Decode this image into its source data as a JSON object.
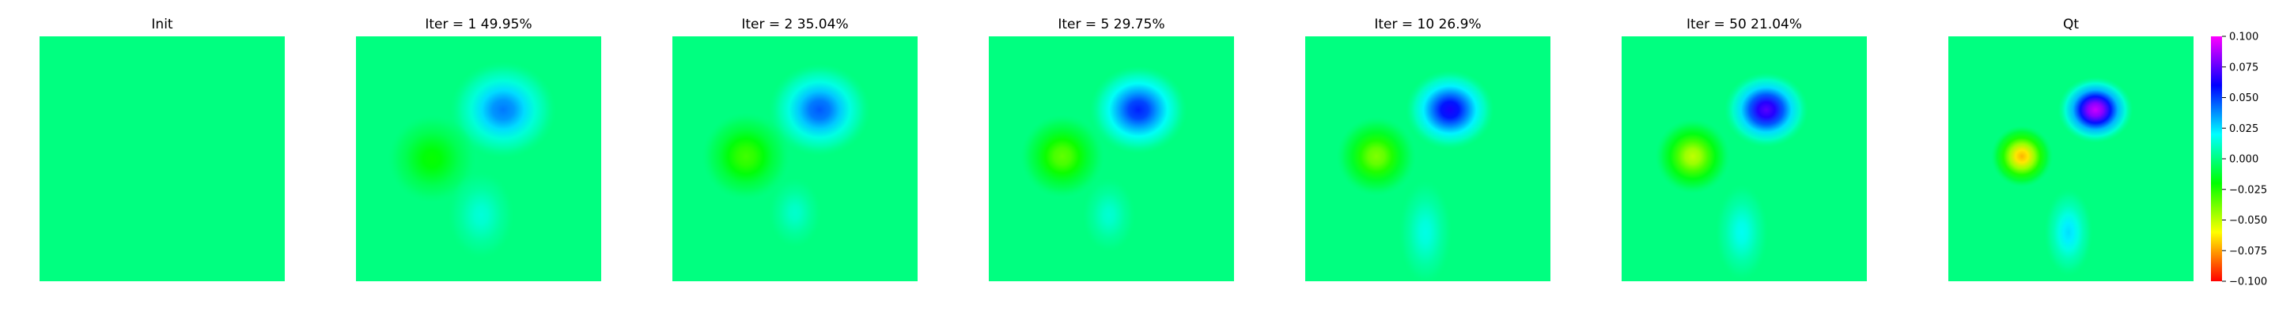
{
  "chart_data": {
    "type": "heatmap",
    "colormap": "gist_rainbow (red -> yellow -> green -> cyan -> blue -> magenta)",
    "colorbar": {
      "min": -0.1,
      "max": 0.1,
      "ticks": [
        "0.100",
        "0.075",
        "0.050",
        "0.025",
        "0.000",
        "−0.025",
        "−0.050",
        "−0.075",
        "−0.100"
      ],
      "tick_values": [
        0.1,
        0.075,
        0.05,
        0.025,
        0.0,
        -0.025,
        -0.05,
        -0.075,
        -0.1
      ]
    },
    "panels": [
      {
        "title": "Init",
        "iteration": null,
        "error_percent": null,
        "features": []
      },
      {
        "title": "Iter = 1    49.95%",
        "iteration": 1,
        "error_percent": 49.95,
        "features": [
          {
            "label": "upper-right anomaly",
            "cx": 0.6,
            "cy": 0.3,
            "sx": 0.12,
            "sy": 0.11,
            "value": 0.041
          },
          {
            "label": "left anomaly",
            "cx": 0.31,
            "cy": 0.5,
            "sx": 0.1,
            "sy": 0.1,
            "value": -0.021
          },
          {
            "label": "lower anomaly",
            "cx": 0.51,
            "cy": 0.73,
            "sx": 0.075,
            "sy": 0.1,
            "value": 0.014
          }
        ]
      },
      {
        "title": "Iter = 2    35.04%",
        "iteration": 2,
        "error_percent": 35.04,
        "features": [
          {
            "label": "upper-right anomaly",
            "cx": 0.6,
            "cy": 0.3,
            "sx": 0.115,
            "sy": 0.105,
            "value": 0.046
          },
          {
            "label": "left anomaly",
            "cx": 0.3,
            "cy": 0.49,
            "sx": 0.1,
            "sy": 0.1,
            "value": -0.03
          },
          {
            "label": "lower anomaly",
            "cx": 0.5,
            "cy": 0.72,
            "sx": 0.06,
            "sy": 0.08,
            "value": 0.012
          }
        ]
      },
      {
        "title": "Iter = 5    29.75%",
        "iteration": 5,
        "error_percent": 29.75,
        "features": [
          {
            "label": "upper-right anomaly",
            "cx": 0.61,
            "cy": 0.3,
            "sx": 0.11,
            "sy": 0.1,
            "value": 0.055
          },
          {
            "label": "left anomaly",
            "cx": 0.3,
            "cy": 0.49,
            "sx": 0.095,
            "sy": 0.095,
            "value": -0.035
          },
          {
            "label": "lower anomaly",
            "cx": 0.49,
            "cy": 0.73,
            "sx": 0.06,
            "sy": 0.085,
            "value": 0.013
          }
        ]
      },
      {
        "title": "Iter = 10    26.9%",
        "iteration": 10,
        "error_percent": 26.9,
        "features": [
          {
            "label": "upper-right anomaly",
            "cx": 0.59,
            "cy": 0.3,
            "sx": 0.1,
            "sy": 0.09,
            "value": 0.064
          },
          {
            "label": "left anomaly",
            "cx": 0.29,
            "cy": 0.49,
            "sx": 0.09,
            "sy": 0.09,
            "value": -0.04
          },
          {
            "label": "lower anomaly",
            "cx": 0.49,
            "cy": 0.8,
            "sx": 0.06,
            "sy": 0.12,
            "value": 0.016
          }
        ]
      },
      {
        "title": "Iter = 50    21.04%",
        "iteration": 50,
        "error_percent": 21.04,
        "features": [
          {
            "label": "upper-right anomaly",
            "cx": 0.59,
            "cy": 0.3,
            "sx": 0.095,
            "sy": 0.085,
            "value": 0.074
          },
          {
            "label": "left anomaly",
            "cx": 0.29,
            "cy": 0.49,
            "sx": 0.085,
            "sy": 0.085,
            "value": -0.05
          },
          {
            "label": "lower anomaly",
            "cx": 0.49,
            "cy": 0.8,
            "sx": 0.06,
            "sy": 0.11,
            "value": 0.018
          }
        ]
      },
      {
        "title": "Qt",
        "iteration": null,
        "error_percent": null,
        "features": [
          {
            "label": "upper-right anomaly",
            "cx": 0.6,
            "cy": 0.3,
            "sx": 0.085,
            "sy": 0.075,
            "value": 0.092
          },
          {
            "label": "left anomaly",
            "cx": 0.3,
            "cy": 0.49,
            "sx": 0.07,
            "sy": 0.07,
            "value": -0.072
          },
          {
            "label": "lower anomaly",
            "cx": 0.49,
            "cy": 0.8,
            "sx": 0.055,
            "sy": 0.1,
            "value": 0.025
          }
        ]
      }
    ]
  }
}
